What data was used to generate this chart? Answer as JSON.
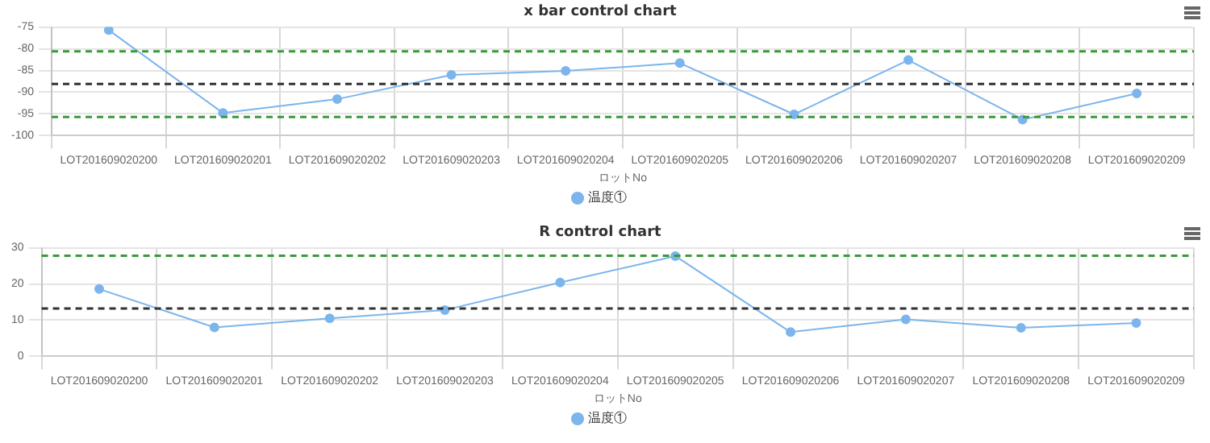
{
  "chart_data": [
    {
      "type": "line",
      "title": "x bar control chart",
      "xlabel": "ロットNo",
      "categories": [
        "LOT201609020200",
        "LOT201609020201",
        "LOT201609020202",
        "LOT201609020203",
        "LOT201609020204",
        "LOT201609020205",
        "LOT201609020206",
        "LOT201609020207",
        "LOT201609020208",
        "LOT201609020209"
      ],
      "series": [
        {
          "name": "温度①",
          "color": "#7cb5ec",
          "values": [
            -75.7,
            -94.8,
            -91.6,
            -86,
            -85.1,
            -83.3,
            -95.1,
            -82.6,
            -96.3,
            -90.3
          ]
        }
      ],
      "ylim": [
        -100,
        -75
      ],
      "yticks": [
        -100,
        -95,
        -90,
        -85,
        -80,
        -75
      ],
      "grid": true,
      "legend": "bottom",
      "marker": "circle",
      "line_style": "solid",
      "ref_lines": [
        {
          "axis": "y",
          "value": -80.6,
          "color": "#3a9a3a",
          "line_style": "dashed"
        },
        {
          "axis": "y",
          "value": -88.1,
          "color": "#333333",
          "line_style": "dashed"
        },
        {
          "axis": "y",
          "value": -95.7,
          "color": "#3a9a3a",
          "line_style": "dashed"
        }
      ]
    },
    {
      "type": "line",
      "title": "R control chart",
      "xlabel": "ロットNo",
      "categories": [
        "LOT201609020200",
        "LOT201609020201",
        "LOT201609020202",
        "LOT201609020203",
        "LOT201609020204",
        "LOT201609020205",
        "LOT201609020206",
        "LOT201609020207",
        "LOT201609020208",
        "LOT201609020209"
      ],
      "series": [
        {
          "name": "温度①",
          "color": "#7cb5ec",
          "values": [
            18.6,
            8,
            10.5,
            12.8,
            20.4,
            27.7,
            6.7,
            10.2,
            7.9,
            9.2
          ]
        }
      ],
      "ylim": [
        0,
        30
      ],
      "yticks": [
        0,
        10,
        20,
        30
      ],
      "grid": true,
      "legend": "bottom",
      "marker": "circle",
      "line_style": "solid",
      "ref_lines": [
        {
          "axis": "y",
          "value": 27.8,
          "color": "#3a9a3a",
          "line_style": "dashed"
        },
        {
          "axis": "y",
          "value": 13.2,
          "color": "#333333",
          "line_style": "dashed"
        }
      ]
    }
  ]
}
